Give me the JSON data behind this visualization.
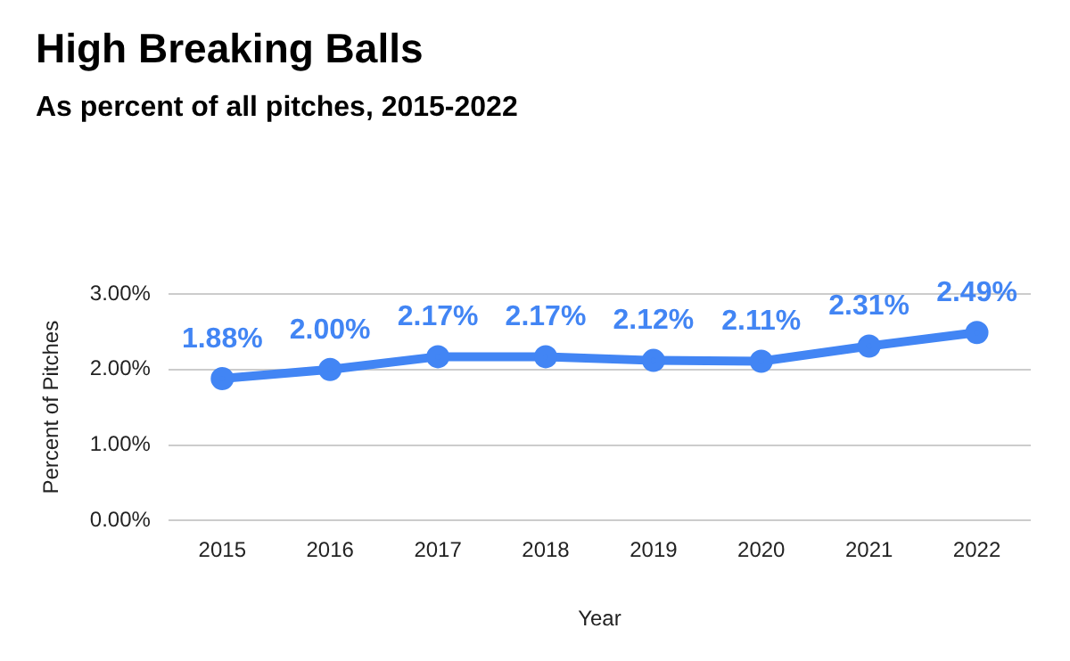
{
  "chart_data": {
    "type": "line",
    "title": "High Breaking Balls",
    "subtitle": "As percent of all pitches, 2015-2022",
    "xlabel": "Year",
    "ylabel": "Percent of Pitches",
    "categories": [
      "2015",
      "2016",
      "2017",
      "2018",
      "2019",
      "2020",
      "2021",
      "2022"
    ],
    "series": [
      {
        "color": "#4285f4",
        "values": [
          1.88,
          2.0,
          2.17,
          2.17,
          2.12,
          2.11,
          2.31,
          2.49
        ],
        "value_labels": [
          "1.88%",
          "2.00%",
          "2.17%",
          "2.17%",
          "2.12%",
          "2.11%",
          "2.31%",
          "2.49%"
        ]
      }
    ],
    "ylim": [
      0,
      3
    ],
    "yticks": [
      {
        "value": 0,
        "label": "0.00%"
      },
      {
        "value": 1,
        "label": "1.00%"
      },
      {
        "value": 2,
        "label": "2.00%"
      },
      {
        "value": 3,
        "label": "3.00%"
      }
    ],
    "grid": "y",
    "legend": false,
    "marker": "circle",
    "line_style": "solid"
  }
}
